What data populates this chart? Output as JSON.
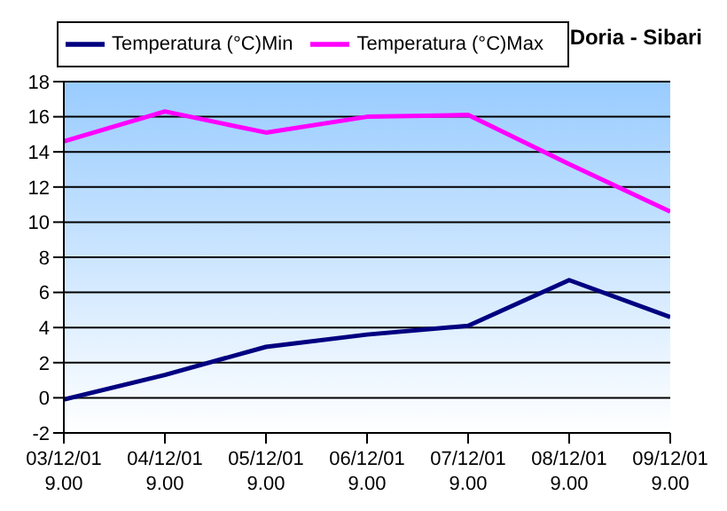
{
  "chart_data": {
    "type": "line",
    "title": "Doria - Sibari",
    "categories": [
      "03/12/01\n9.00",
      "04/12/01\n9.00",
      "05/12/01\n9.00",
      "06/12/01\n9.00",
      "07/12/01\n9.00",
      "08/12/01\n9.00",
      "09/12/01\n9.00"
    ],
    "series": [
      {
        "name": "Temperatura (°C)Min",
        "color": "#000080",
        "values": [
          -0.1,
          1.3,
          2.9,
          3.6,
          4.1,
          6.7,
          4.6
        ]
      },
      {
        "name": "Temperatura (°C)Max",
        "color": "#ff00ff",
        "values": [
          14.6,
          16.3,
          15.1,
          16.0,
          16.1,
          13.3,
          10.6
        ]
      }
    ],
    "ylim": [
      -2,
      18
    ],
    "yticks": [
      -2,
      0,
      2,
      4,
      6,
      8,
      10,
      12,
      14,
      16,
      18
    ],
    "grid": "y",
    "legend": "top left",
    "marker": "none",
    "line_style": "solid"
  }
}
